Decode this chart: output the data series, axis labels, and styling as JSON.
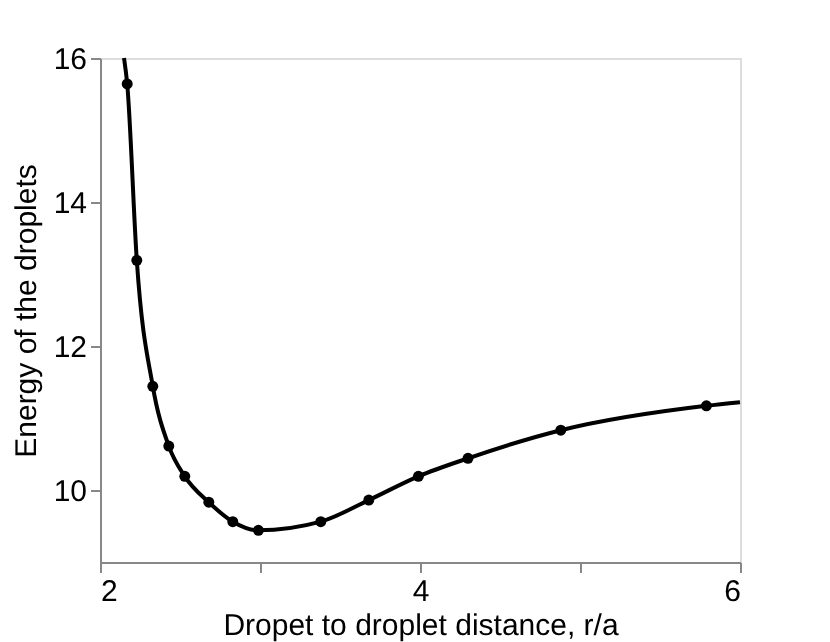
{
  "chart_data": {
    "type": "line",
    "xlabel": "Dropet to droplet distance, r/a",
    "ylabel": "Energy of the droplets",
    "xlim": [
      2,
      6
    ],
    "ylim": [
      9,
      16
    ],
    "xticks": [
      2,
      {
        "value": 3,
        "label": null
      },
      4,
      {
        "value": 5,
        "label": null
      },
      6
    ],
    "yticks": [
      10,
      12,
      14,
      16
    ],
    "grid": false,
    "series": [
      {
        "marker": "none",
        "color": "#000000",
        "x": [
          2.15,
          2.17,
          2.23,
          2.33,
          2.43,
          2.53,
          2.68,
          2.83,
          2.99,
          3.38,
          3.68,
          3.99,
          4.3,
          4.88,
          5.79,
          6.0
        ],
        "values": [
          16.0,
          15.64,
          13.19,
          11.44,
          10.61,
          10.19,
          9.83,
          9.56,
          9.44,
          9.56,
          9.86,
          10.19,
          10.44,
          10.83,
          11.17,
          11.22
        ]
      },
      {
        "type": "scatter",
        "marker": "circle",
        "color": "#000000",
        "x": [
          2.17,
          2.23,
          2.33,
          2.43,
          2.53,
          2.68,
          2.83,
          2.99,
          3.38,
          3.68,
          3.99,
          4.3,
          4.88,
          5.79
        ],
        "values": [
          15.64,
          13.19,
          11.44,
          10.61,
          10.19,
          9.83,
          9.56,
          9.44,
          9.56,
          9.86,
          10.19,
          10.44,
          10.83,
          11.17
        ]
      }
    ]
  }
}
